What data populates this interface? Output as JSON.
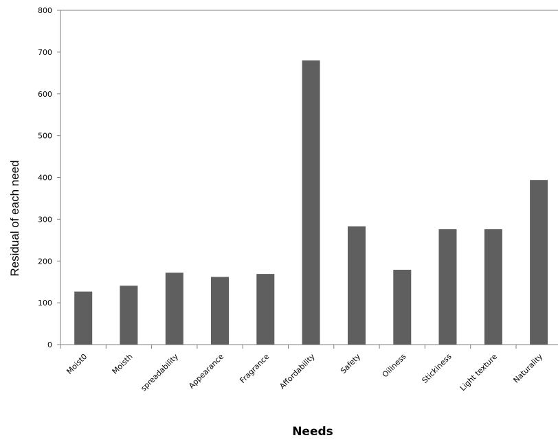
{
  "chart_data": {
    "type": "bar",
    "categories": [
      "Moist0",
      "Moisth",
      "spreadability",
      "Appearance",
      "Fragrance",
      "Affordability",
      "Safety",
      "Oiliness",
      "Stickiness",
      "Light texture",
      "Naturality"
    ],
    "values": [
      127,
      141,
      172,
      162,
      169,
      680,
      283,
      179,
      276,
      276,
      394
    ],
    "title": "",
    "xlabel": "Needs",
    "ylabel": "Residual of each need",
    "ylim": [
      0,
      800
    ],
    "yticks": [
      0,
      100,
      200,
      300,
      400,
      500,
      600,
      700,
      800
    ],
    "grid": false,
    "legend": "none",
    "colors": {
      "bar": "#5f5f5f",
      "axis": "#808080",
      "text": "#000000"
    }
  }
}
